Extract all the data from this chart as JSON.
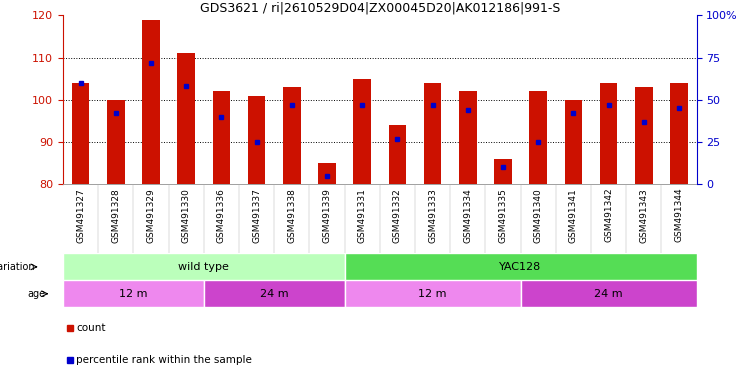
{
  "title": "GDS3621 / ri|2610529D04|ZX00045D20|AK012186|991-S",
  "samples": [
    "GSM491327",
    "GSM491328",
    "GSM491329",
    "GSM491330",
    "GSM491336",
    "GSM491337",
    "GSM491338",
    "GSM491339",
    "GSM491331",
    "GSM491332",
    "GSM491333",
    "GSM491334",
    "GSM491335",
    "GSM491340",
    "GSM491341",
    "GSM491342",
    "GSM491343",
    "GSM491344"
  ],
  "counts": [
    104,
    100,
    119,
    111,
    102,
    101,
    103,
    85,
    105,
    94,
    104,
    102,
    86,
    102,
    100,
    104,
    103,
    104
  ],
  "percentile_ranks": [
    60,
    42,
    72,
    58,
    40,
    25,
    47,
    5,
    47,
    27,
    47,
    44,
    10,
    25,
    42,
    47,
    37,
    45
  ],
  "ymin": 80,
  "ymax": 120,
  "yticks": [
    80,
    90,
    100,
    110,
    120
  ],
  "right_yticks": [
    0,
    25,
    50,
    75,
    100
  ],
  "right_ytick_labels": [
    "0",
    "25",
    "50",
    "75",
    "100%"
  ],
  "bar_color": "#cc1100",
  "dot_color": "#0000cc",
  "genotype_groups": [
    {
      "label": "wild type",
      "start": 0,
      "end": 8,
      "color": "#bbffbb"
    },
    {
      "label": "YAC128",
      "start": 8,
      "end": 18,
      "color": "#55dd55"
    }
  ],
  "age_groups": [
    {
      "label": "12 m",
      "start": 0,
      "end": 4,
      "color": "#ee88ee"
    },
    {
      "label": "24 m",
      "start": 4,
      "end": 8,
      "color": "#cc44cc"
    },
    {
      "label": "12 m",
      "start": 8,
      "end": 13,
      "color": "#ee88ee"
    },
    {
      "label": "24 m",
      "start": 13,
      "end": 18,
      "color": "#cc44cc"
    }
  ],
  "legend_items": [
    {
      "label": "count",
      "color": "#cc1100"
    },
    {
      "label": "percentile rank within the sample",
      "color": "#0000cc"
    }
  ],
  "title_fontsize": 9,
  "axis_label_color_left": "#cc1100",
  "axis_label_color_right": "#0000cc",
  "bar_width": 0.5
}
